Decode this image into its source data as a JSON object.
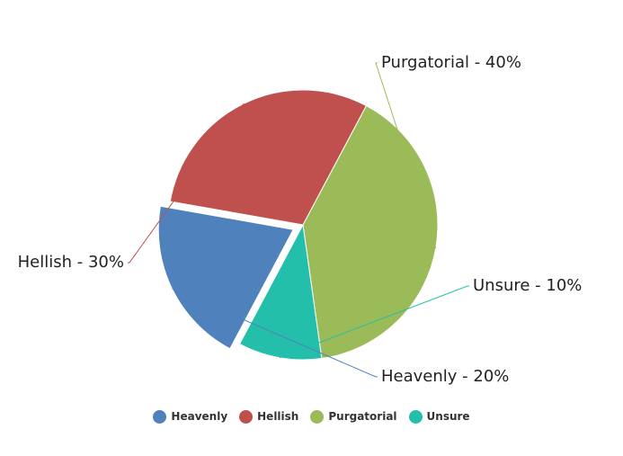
{
  "chart_data": {
    "type": "pie",
    "start_angle_deg": -62,
    "exploded_slice": "Heavenly",
    "slices": [
      {
        "name": "Purgatorial",
        "value": 40,
        "color": "#9bbb59",
        "label": "Purgatorial - 40%"
      },
      {
        "name": "Unsure",
        "value": 10,
        "color": "#23bfaa",
        "label": "Unsure - 10%"
      },
      {
        "name": "Heavenly",
        "value": 20,
        "color": "#4f81bc",
        "label": "Heavenly - 20%"
      },
      {
        "name": "Hellish",
        "value": 30,
        "color": "#c0504e",
        "label": "Hellish - 30%"
      }
    ],
    "legend": {
      "placement": "bottom",
      "items": [
        {
          "name": "Heavenly",
          "color": "#4f81bc"
        },
        {
          "name": "Hellish",
          "color": "#c0504e"
        },
        {
          "name": "Purgatorial",
          "color": "#9bbb59"
        },
        {
          "name": "Unsure",
          "color": "#23bfaa"
        }
      ]
    }
  }
}
